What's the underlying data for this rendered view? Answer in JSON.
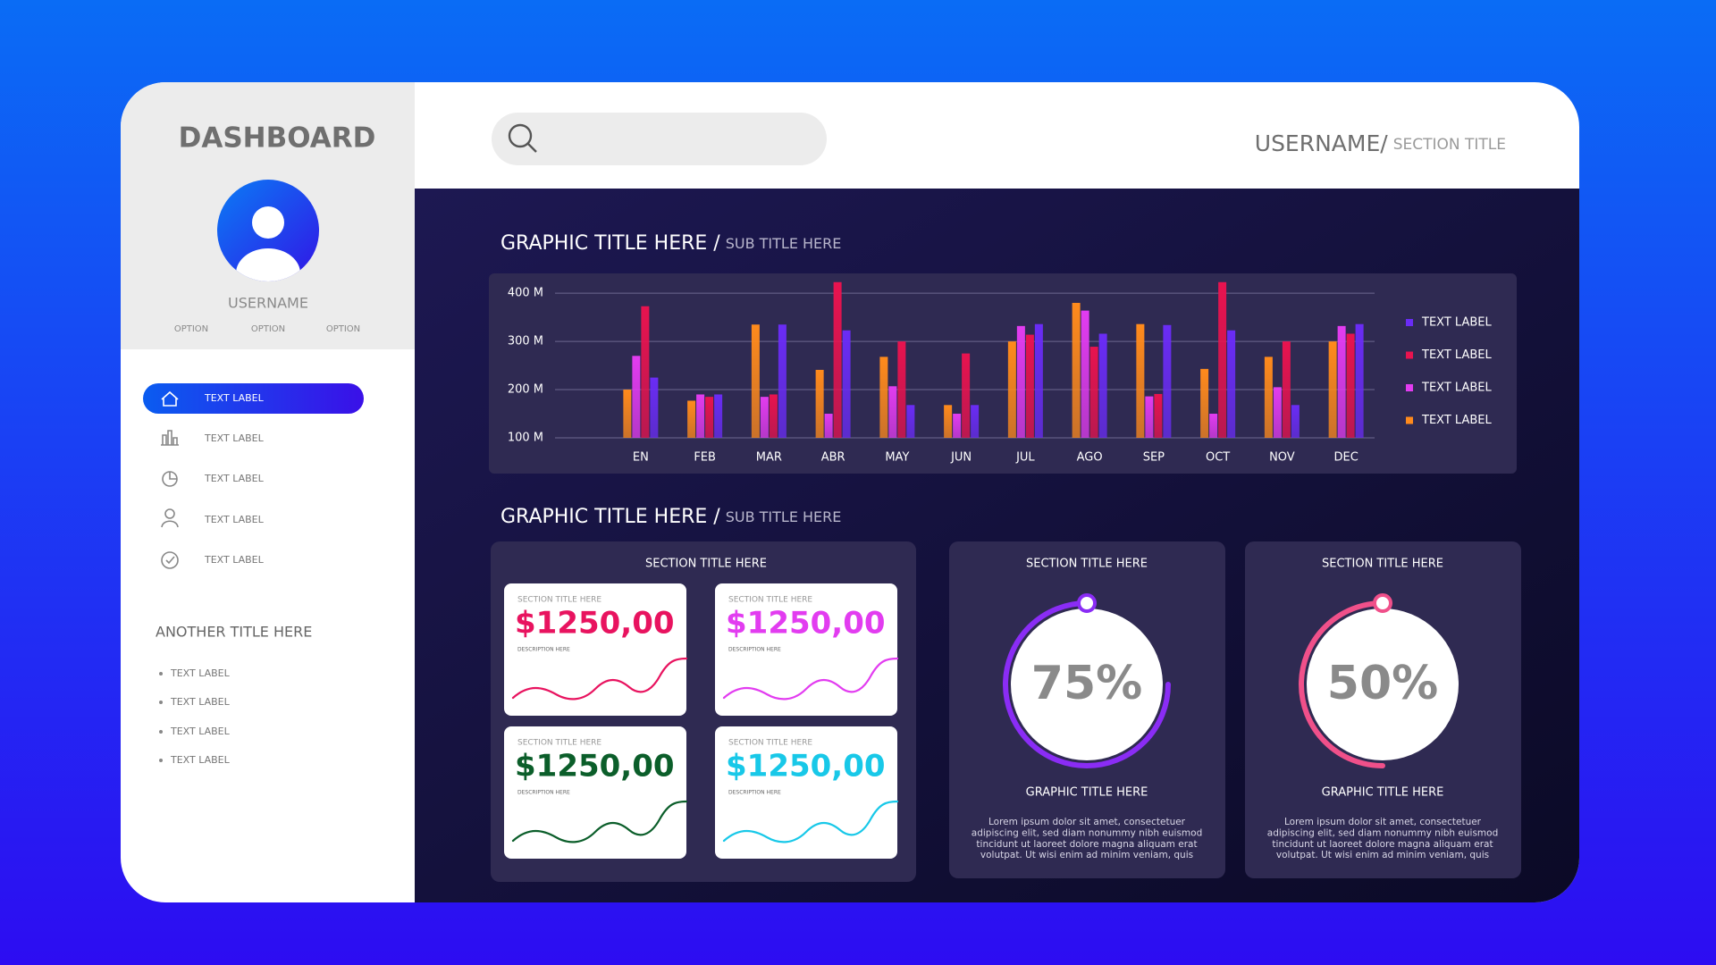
{
  "sidebar": {
    "title": "DASHBOARD",
    "username": "USERNAME",
    "options": [
      "OPTION",
      "OPTION",
      "OPTION"
    ],
    "nav": [
      "TEXT LABEL",
      "TEXT LABEL",
      "TEXT LABEL",
      "TEXT LABEL",
      "TEXT LABEL"
    ],
    "another_title": "ANOTHER TITLE HERE",
    "list": [
      "TEXT LABEL",
      "TEXT LABEL",
      "TEXT LABEL",
      "TEXT LABEL"
    ]
  },
  "header": {
    "username": "USERNAME/",
    "section_title": "SECTION TITLE"
  },
  "chart_data": {
    "type": "bar",
    "title": "GRAPHIC TITLE HERE /",
    "subtitle": "SUB TITLE HERE",
    "categories": [
      "EN",
      "FEB",
      "MAR",
      "ABR",
      "MAY",
      "JUN",
      "JUL",
      "AGO",
      "SEP",
      "OCT",
      "NOV",
      "DEC"
    ],
    "series": [
      {
        "name": "TEXT LABEL",
        "color": "#6a2cf5",
        "values": [
          225,
          190,
          335,
          323,
          168,
          168,
          336,
          316,
          334,
          323,
          168,
          336
        ]
      },
      {
        "name": "TEXT LABEL",
        "color": "#e8134f",
        "values": [
          373,
          185,
          190,
          423,
          300,
          275,
          314,
          289,
          191,
          423,
          300,
          316
        ]
      },
      {
        "name": "TEXT LABEL",
        "color": "#e23cf0",
        "values": [
          270,
          190,
          185,
          150,
          207,
          150,
          332,
          364,
          186,
          150,
          205,
          332
        ]
      },
      {
        "name": "TEXT LABEL",
        "color": "#ff8a1c",
        "values": [
          200,
          177,
          335,
          241,
          268,
          168,
          300,
          380,
          336,
          243,
          268,
          300
        ]
      }
    ],
    "ylim": [
      100,
      430
    ],
    "yticks": [
      {
        "value": 100,
        "label": "100 M"
      },
      {
        "value": 200,
        "label": "200 M"
      },
      {
        "value": 300,
        "label": "300 M"
      },
      {
        "value": 400,
        "label": "400 M"
      }
    ],
    "grid": true,
    "legend": "right"
  },
  "section2": {
    "title": "GRAPHIC TITLE HERE /",
    "subtitle": "SUB TITLE HERE"
  },
  "stats_panel": {
    "title": "SECTION TITLE HERE",
    "cards": [
      {
        "title": "SECTION TITLE HERE",
        "amount": "$1250,00",
        "description": "DESCRIPTION HERE",
        "color": "#e8135f"
      },
      {
        "title": "SECTION TITLE HERE",
        "amount": "$1250,00",
        "description": "DESCRIPTION HERE",
        "color": "#e23cf0"
      },
      {
        "title": "SECTION TITLE HERE",
        "amount": "$1250,00",
        "description": "DESCRIPTION HERE",
        "color": "#0b5e2a"
      },
      {
        "title": "SECTION TITLE HERE",
        "amount": "$1250,00",
        "description": "DESCRIPTION HERE",
        "color": "#18c8e8"
      }
    ]
  },
  "gauges": [
    {
      "title": "SECTION TITLE HERE",
      "value": 75,
      "value_label": "75%",
      "color": "#8a2cf5",
      "caption": "GRAPHIC TITLE HERE",
      "text": [
        "Lorem ipsum dolor sit amet, consectetuer",
        "adipiscing elit, sed diam nonummy nibh euismod",
        "tincidunt ut laoreet dolore magna aliquam erat",
        "volutpat. Ut wisi enim ad minim veniam, quis"
      ]
    },
    {
      "title": "SECTION TITLE HERE",
      "value": 50,
      "value_label": "50%",
      "color": "#f0508a",
      "caption": "GRAPHIC TITLE HERE",
      "text": [
        "Lorem ipsum dolor sit amet, consectetuer",
        "adipiscing elit, sed diam nonummy nibh euismod",
        "tincidunt ut laoreet dolore magna aliquam erat",
        "volutpat. Ut wisi enim ad minim veniam, quis"
      ]
    }
  ]
}
